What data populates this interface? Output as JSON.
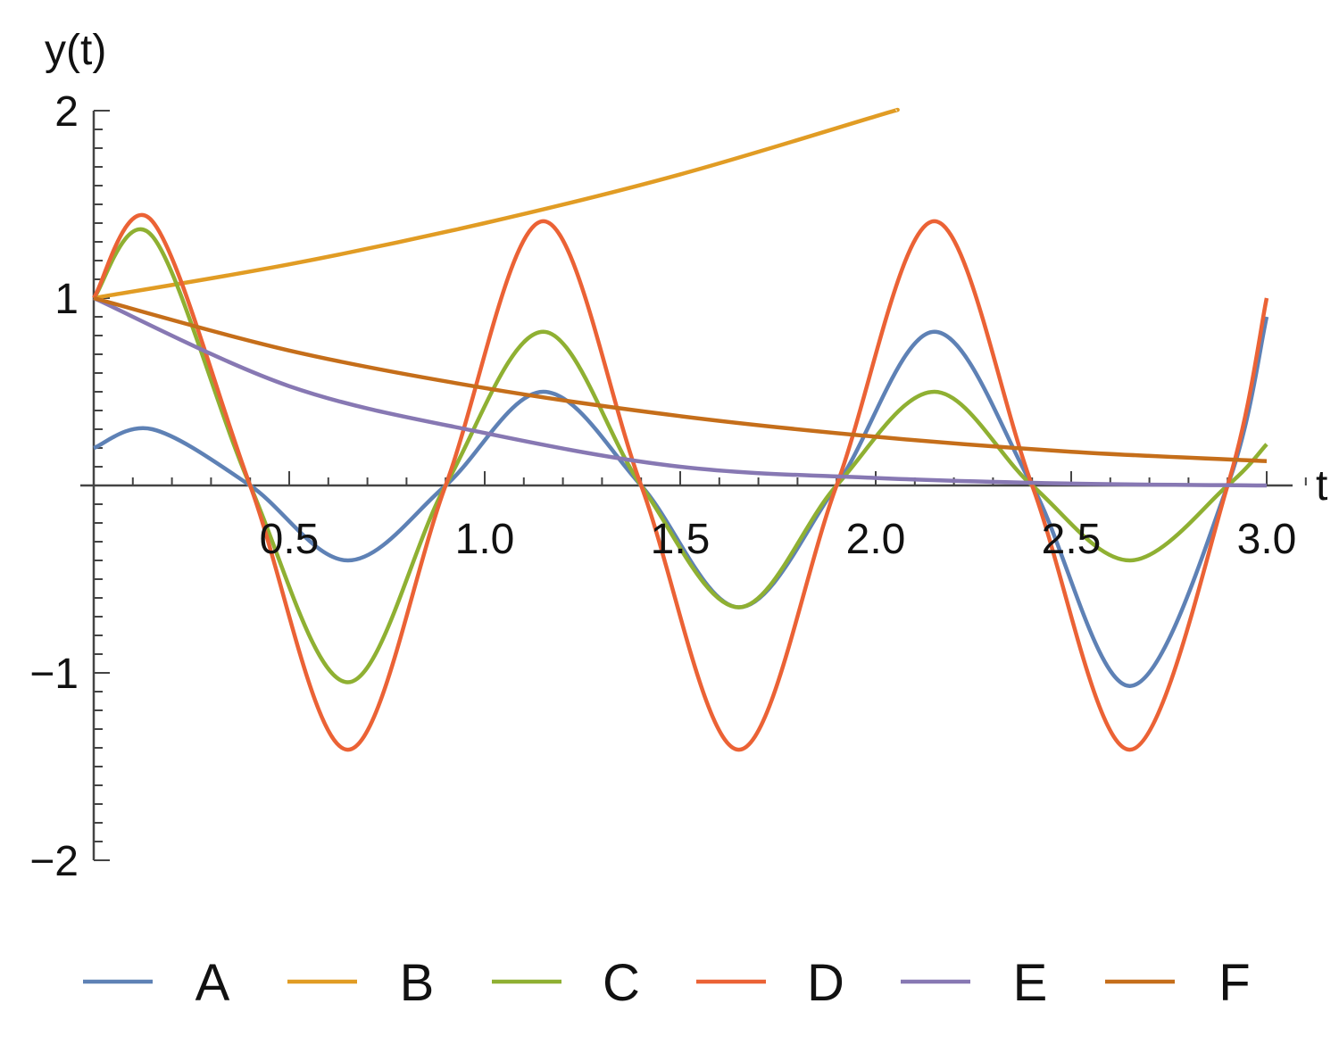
{
  "chart_data": {
    "type": "line",
    "xlabel": "t",
    "ylabel": "y(t)",
    "xlim": [
      0,
      3.0
    ],
    "ylim": [
      -2,
      2
    ],
    "x_ticks": [
      "0.5",
      "1.0",
      "1.5",
      "2.0",
      "2.5",
      "3.0"
    ],
    "y_ticks": [
      "2",
      "1",
      "−1",
      "−2"
    ],
    "grid": false,
    "legend_position": "bottom",
    "series": [
      {
        "name": "A",
        "color": "#5E81B5",
        "x": [
          0,
          0.15,
          0.4,
          0.65,
          0.9,
          1.15,
          1.4,
          1.65,
          1.9,
          2.15,
          2.4,
          2.65,
          2.9,
          3.0
        ],
        "y": [
          0.2,
          0.3,
          0.0,
          -0.4,
          0.0,
          0.5,
          0.0,
          -0.65,
          0.0,
          0.82,
          0.0,
          -1.07,
          0.0,
          0.9
        ]
      },
      {
        "name": "B",
        "color": "#E19C24",
        "x": [
          0,
          0.5,
          1.0,
          1.5,
          2.0,
          2.05
        ],
        "y": [
          1.0,
          1.18,
          1.4,
          1.66,
          1.97,
          2.0
        ]
      },
      {
        "name": "C",
        "color": "#8FB032",
        "x": [
          0,
          0.15,
          0.4,
          0.65,
          0.9,
          1.15,
          1.4,
          1.65,
          1.9,
          2.15,
          2.4,
          2.65,
          2.9,
          3.0
        ],
        "y": [
          1.0,
          1.33,
          0.0,
          -1.05,
          0.0,
          0.82,
          0.0,
          -0.65,
          0.0,
          0.5,
          0.0,
          -0.4,
          0.0,
          0.22
        ]
      },
      {
        "name": "D",
        "color": "#EB6235",
        "x": [
          0,
          0.15,
          0.4,
          0.65,
          0.9,
          1.15,
          1.4,
          1.65,
          1.9,
          2.15,
          2.4,
          2.65,
          2.9,
          3.0
        ],
        "y": [
          1.0,
          1.41,
          0.0,
          -1.41,
          0.0,
          1.41,
          0.0,
          -1.41,
          0.0,
          1.41,
          0.0,
          -1.41,
          0.0,
          1.0
        ]
      },
      {
        "name": "E",
        "color": "#8778B3",
        "x": [
          0,
          0.5,
          1.0,
          1.5,
          2.0,
          2.5,
          3.0
        ],
        "y": [
          1.0,
          0.53,
          0.28,
          0.1,
          0.04,
          0.01,
          0.0
        ]
      },
      {
        "name": "F",
        "color": "#C56E1A",
        "x": [
          0,
          0.5,
          1.0,
          1.5,
          2.0,
          2.5,
          3.0
        ],
        "y": [
          1.0,
          0.72,
          0.52,
          0.37,
          0.26,
          0.18,
          0.13
        ]
      }
    ]
  }
}
